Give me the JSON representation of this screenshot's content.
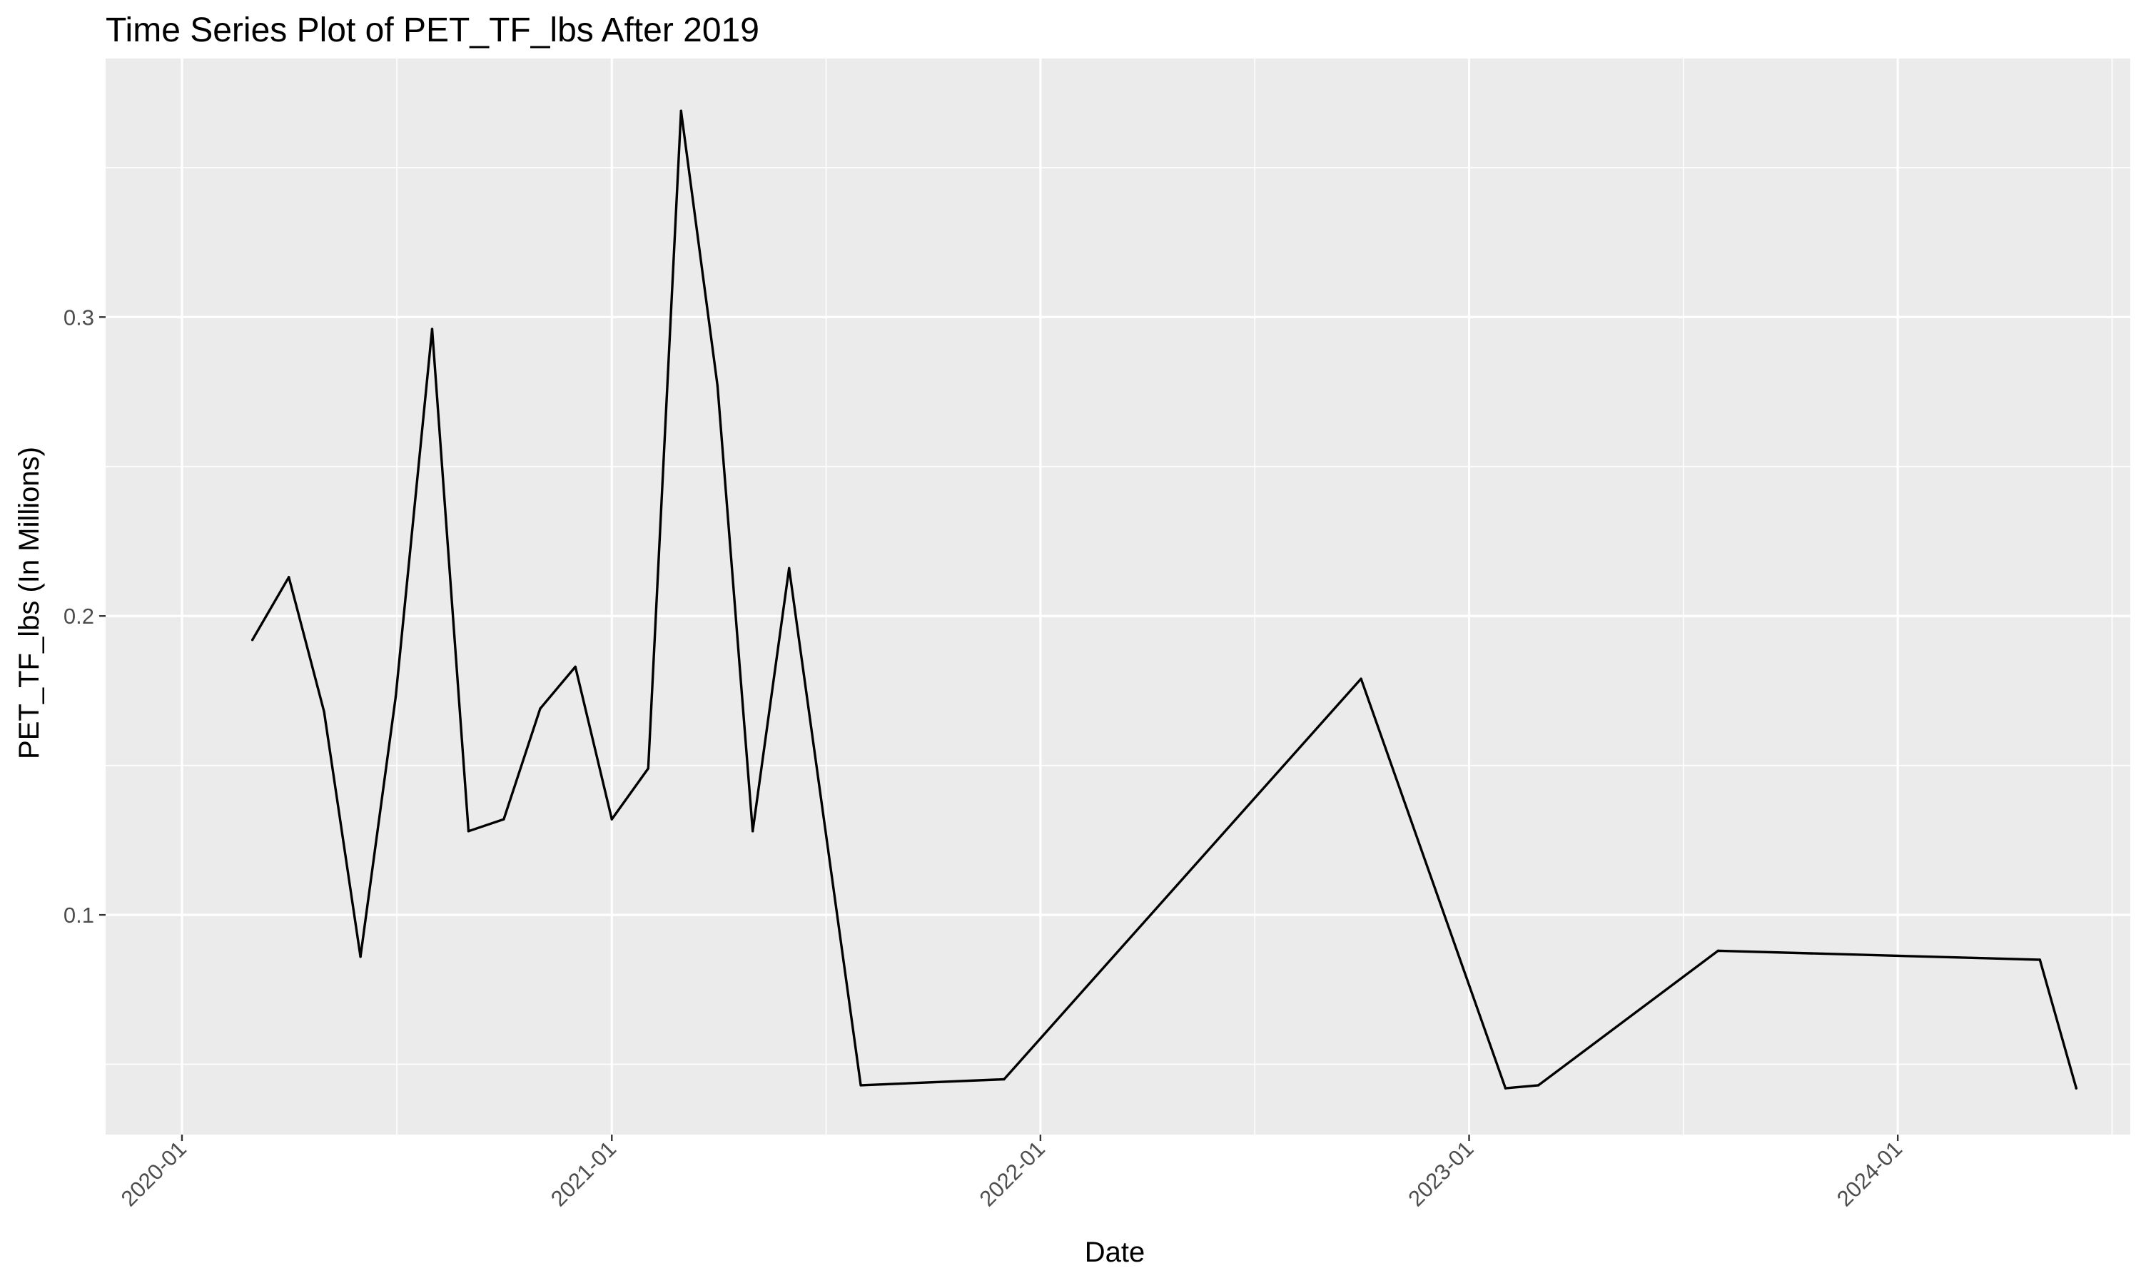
{
  "chart_data": {
    "type": "line",
    "title": "Time Series Plot of PET_TF_lbs After 2019",
    "xlabel": "Date",
    "ylabel": "PET_TF_lbs (In Millions)",
    "x_ticks": [
      "2020-01",
      "2021-01",
      "2022-01",
      "2023-01",
      "2024-01"
    ],
    "y_ticks": [
      0.1,
      0.2,
      0.3
    ],
    "y_tick_labels": [
      "0.1",
      "0.2",
      "0.3"
    ],
    "xlim": [
      "2019-10-28",
      "2024-07-17"
    ],
    "ylim": [
      0.0265,
      0.3865
    ],
    "grid": true,
    "line_color": "#000000",
    "panel_color": "#EBEBEB",
    "grid_color": "#FFFFFF",
    "series": [
      {
        "x": [
          "2020-03-01",
          "2020-04-01",
          "2020-05-01",
          "2020-06-01",
          "2020-07-01",
          "2020-08-01",
          "2020-09-01",
          "2020-10-01",
          "2020-11-01",
          "2020-12-01",
          "2021-01-01",
          "2021-02-01",
          "2021-03-01",
          "2021-04-01",
          "2021-05-01",
          "2021-06-01",
          "2021-08-01",
          "2021-12-01",
          "2022-10-01",
          "2023-02-01",
          "2023-03-01",
          "2023-08-01",
          "2024-05-01",
          "2024-06-01"
        ],
        "y": [
          0.192,
          0.213,
          0.168,
          0.086,
          0.173,
          0.296,
          0.128,
          0.132,
          0.169,
          0.183,
          0.132,
          0.149,
          0.369,
          0.277,
          0.128,
          0.216,
          0.043,
          0.045,
          0.179,
          0.042,
          0.043,
          0.088,
          0.085,
          0.042
        ]
      }
    ]
  }
}
